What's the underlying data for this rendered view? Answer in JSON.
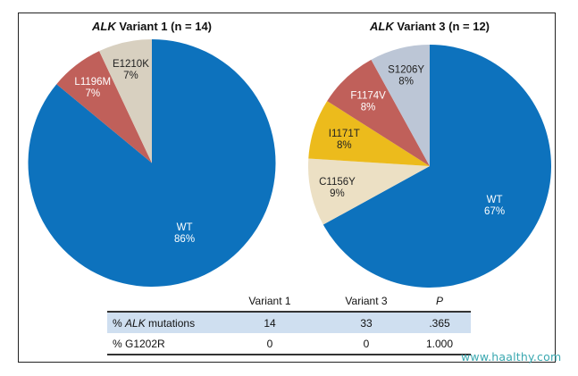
{
  "chart_data": [
    {
      "type": "pie",
      "title_italic": "ALK",
      "title_rest": " Variant 1 (n = 14)",
      "slices": [
        {
          "label": "WT",
          "value": 86,
          "percent_label": "86%",
          "color": "#0d72bd",
          "text_color": "#ffffff"
        },
        {
          "label": "L1196M",
          "value": 7,
          "percent_label": "7%",
          "color": "#c0605a",
          "text_color": "#ffffff"
        },
        {
          "label": "E1210K",
          "value": 7,
          "percent_label": "7%",
          "color": "#d8d0c0",
          "text_color": "#222222"
        }
      ],
      "start": "12 o'clock",
      "direction": "clockwise"
    },
    {
      "type": "pie",
      "title_italic": "ALK",
      "title_rest": " Variant 3 (n = 12)",
      "slices": [
        {
          "label": "WT",
          "value": 67,
          "percent_label": "67%",
          "color": "#0d72bd",
          "text_color": "#ffffff"
        },
        {
          "label": "C1156Y",
          "value": 9,
          "percent_label": "9%",
          "color": "#ece0c4",
          "text_color": "#222222"
        },
        {
          "label": "I1171T",
          "value": 8,
          "percent_label": "8%",
          "color": "#ecbb1c",
          "text_color": "#222222"
        },
        {
          "label": "F1174V",
          "value": 8,
          "percent_label": "8%",
          "color": "#c0605a",
          "text_color": "#ffffff"
        },
        {
          "label": "S1206Y",
          "value": 8,
          "percent_label": "8%",
          "color": "#bcc6d6",
          "text_color": "#222222"
        }
      ],
      "start": "12 o'clock",
      "direction": "clockwise"
    }
  ],
  "table": {
    "headers": [
      "",
      "Variant 1",
      "Variant 3",
      "P"
    ],
    "rows": [
      {
        "label_prefix": "% ",
        "label_italic": "ALK",
        "label_suffix": " mutations",
        "values": [
          "14",
          "33",
          ".365"
        ]
      },
      {
        "label_prefix": "% G1202R",
        "label_italic": "",
        "label_suffix": "",
        "values": [
          "0",
          "0",
          "1.000"
        ]
      }
    ]
  },
  "watermark": "www.haalthy.com"
}
